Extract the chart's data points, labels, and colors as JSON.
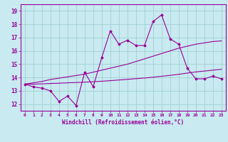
{
  "xlabel": "Windchill (Refroidissement éolien,°C)",
  "bg_color": "#c8eaf0",
  "line_color": "#990099",
  "grid_color": "#99cccc",
  "xlim": [
    -0.5,
    23.5
  ],
  "ylim": [
    11.5,
    19.5
  ],
  "xticks": [
    0,
    1,
    2,
    3,
    4,
    5,
    6,
    7,
    8,
    9,
    10,
    11,
    12,
    13,
    14,
    15,
    16,
    17,
    18,
    19,
    20,
    21,
    22,
    23
  ],
  "yticks": [
    12,
    13,
    14,
    15,
    16,
    17,
    18,
    19
  ],
  "data_y": [
    13.5,
    13.3,
    13.2,
    13.0,
    12.2,
    12.6,
    11.9,
    14.4,
    13.3,
    15.5,
    17.5,
    16.5,
    16.8,
    16.4,
    16.4,
    18.2,
    18.7,
    16.9,
    16.5,
    14.7,
    13.9,
    13.9,
    14.1,
    13.9
  ],
  "trend1_y": [
    13.5,
    13.6,
    13.7,
    13.85,
    13.95,
    14.05,
    14.15,
    14.25,
    14.4,
    14.55,
    14.7,
    14.85,
    15.0,
    15.2,
    15.4,
    15.6,
    15.8,
    16.0,
    16.2,
    16.35,
    16.5,
    16.6,
    16.7,
    16.75
  ],
  "trend2_y": [
    13.5,
    13.5,
    13.52,
    13.55,
    13.57,
    13.6,
    13.62,
    13.65,
    13.68,
    13.72,
    13.76,
    13.81,
    13.86,
    13.91,
    13.96,
    14.02,
    14.09,
    14.16,
    14.24,
    14.33,
    14.42,
    14.48,
    14.55,
    14.62
  ]
}
